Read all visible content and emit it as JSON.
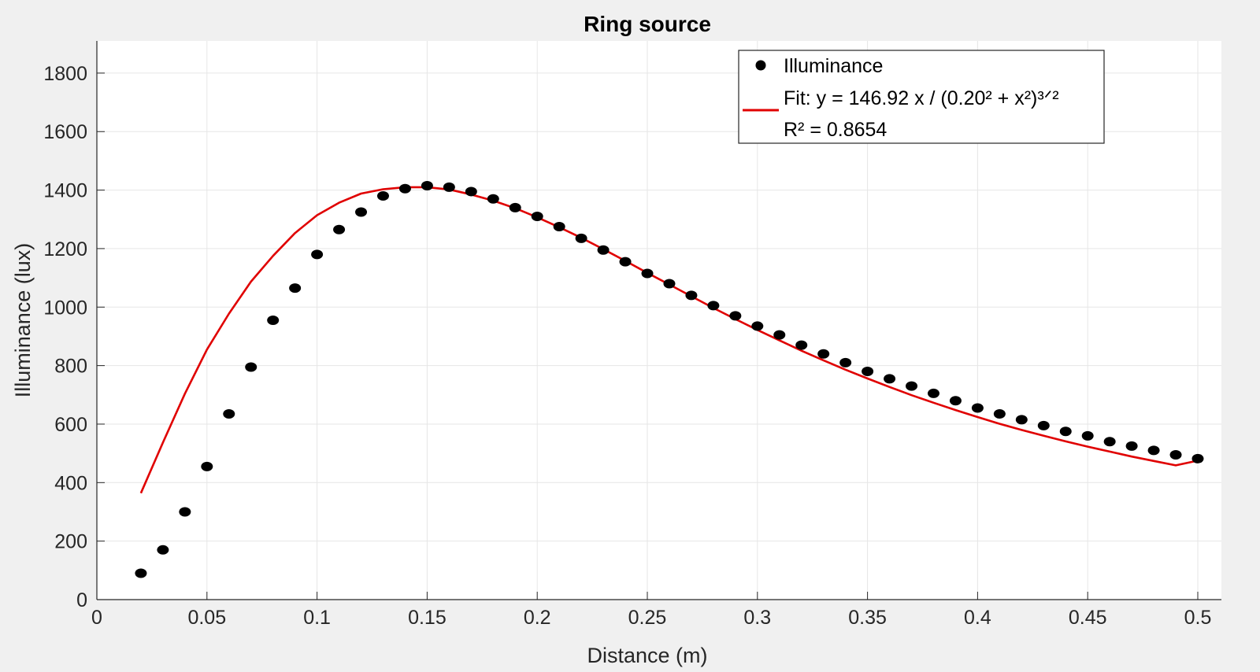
{
  "chart_data": {
    "type": "scatter",
    "title": "Ring source",
    "xlabel": "Distance (m)",
    "ylabel": "Illuminance (lux)",
    "xlim": [
      0,
      0.5
    ],
    "ylim": [
      0,
      1800
    ],
    "xticks": [
      0,
      0.05,
      0.1,
      0.15,
      0.2,
      0.25,
      0.3,
      0.35,
      0.4,
      0.45,
      0.5
    ],
    "xtick_labels": [
      "0",
      "0.05",
      "0.1",
      "0.15",
      "0.2",
      "0.25",
      "0.3",
      "0.35",
      "0.4",
      "0.45",
      "0.5"
    ],
    "yticks": [
      0,
      200,
      400,
      600,
      800,
      1000,
      1200,
      1400,
      1600,
      1800
    ],
    "ytick_labels": [
      "0",
      "200",
      "400",
      "600",
      "800",
      "1000",
      "1200",
      "1400",
      "1600",
      "1800"
    ],
    "grid": true,
    "legend_position": "top-right",
    "colors": {
      "points": "#000000",
      "fit": "#e00000"
    },
    "series": [
      {
        "name": "Illuminance",
        "kind": "points",
        "x": [
          0.02,
          0.03,
          0.04,
          0.05,
          0.06,
          0.07,
          0.08,
          0.09,
          0.1,
          0.11,
          0.12,
          0.13,
          0.14,
          0.15,
          0.16,
          0.17,
          0.18,
          0.19,
          0.2,
          0.21,
          0.22,
          0.23,
          0.24,
          0.25,
          0.26,
          0.27,
          0.28,
          0.29,
          0.3,
          0.31,
          0.32,
          0.33,
          0.34,
          0.35,
          0.36,
          0.37,
          0.38,
          0.39,
          0.4,
          0.41,
          0.42,
          0.43,
          0.44,
          0.45,
          0.46,
          0.47,
          0.48,
          0.49,
          0.5
        ],
        "y": [
          90,
          170,
          300,
          455,
          635,
          795,
          955,
          1065,
          1180,
          1265,
          1325,
          1380,
          1405,
          1415,
          1410,
          1395,
          1370,
          1340,
          1310,
          1275,
          1235,
          1195,
          1155,
          1115,
          1080,
          1040,
          1005,
          970,
          935,
          905,
          870,
          840,
          810,
          780,
          755,
          730,
          705,
          680,
          655,
          635,
          615,
          595,
          575,
          560,
          540,
          525,
          510,
          495,
          482
        ]
      },
      {
        "name": "Fit: y = 146.92 x / (0.20² + x²)³ᐟ²",
        "kind": "line",
        "x": [
          0.02,
          0.03,
          0.04,
          0.05,
          0.06,
          0.07,
          0.08,
          0.09,
          0.1,
          0.11,
          0.12,
          0.13,
          0.14,
          0.15,
          0.16,
          0.17,
          0.18,
          0.19,
          0.2,
          0.21,
          0.22,
          0.23,
          0.24,
          0.25,
          0.26,
          0.27,
          0.28,
          0.29,
          0.3,
          0.31,
          0.32,
          0.33,
          0.34,
          0.35,
          0.36,
          0.37,
          0.38,
          0.39,
          0.4,
          0.41,
          0.42,
          0.43,
          0.44,
          0.45,
          0.46,
          0.47,
          0.48,
          0.49,
          0.5
        ],
        "y": [
          364,
          537,
          704,
          855,
          978,
          1087,
          1175,
          1253,
          1314,
          1357,
          1388,
          1403,
          1410,
          1410,
          1402,
          1385,
          1364,
          1338,
          1307,
          1273,
          1237,
          1198,
          1158,
          1117,
          1077,
          1037,
          997,
          959,
          922,
          886,
          851,
          818,
          786,
          756,
          727,
          699,
          673,
          648,
          624,
          601,
          580,
          560,
          541,
          523,
          506,
          489,
          474,
          459,
          475
        ]
      }
    ],
    "legend": {
      "entries": [
        {
          "kind": "marker",
          "label": "Illuminance"
        },
        {
          "kind": "line",
          "label": "Fit: y = 146.92 x / (0.20² + x²)³ᐟ²"
        }
      ],
      "extra_line": "R² = 0.8654"
    }
  }
}
